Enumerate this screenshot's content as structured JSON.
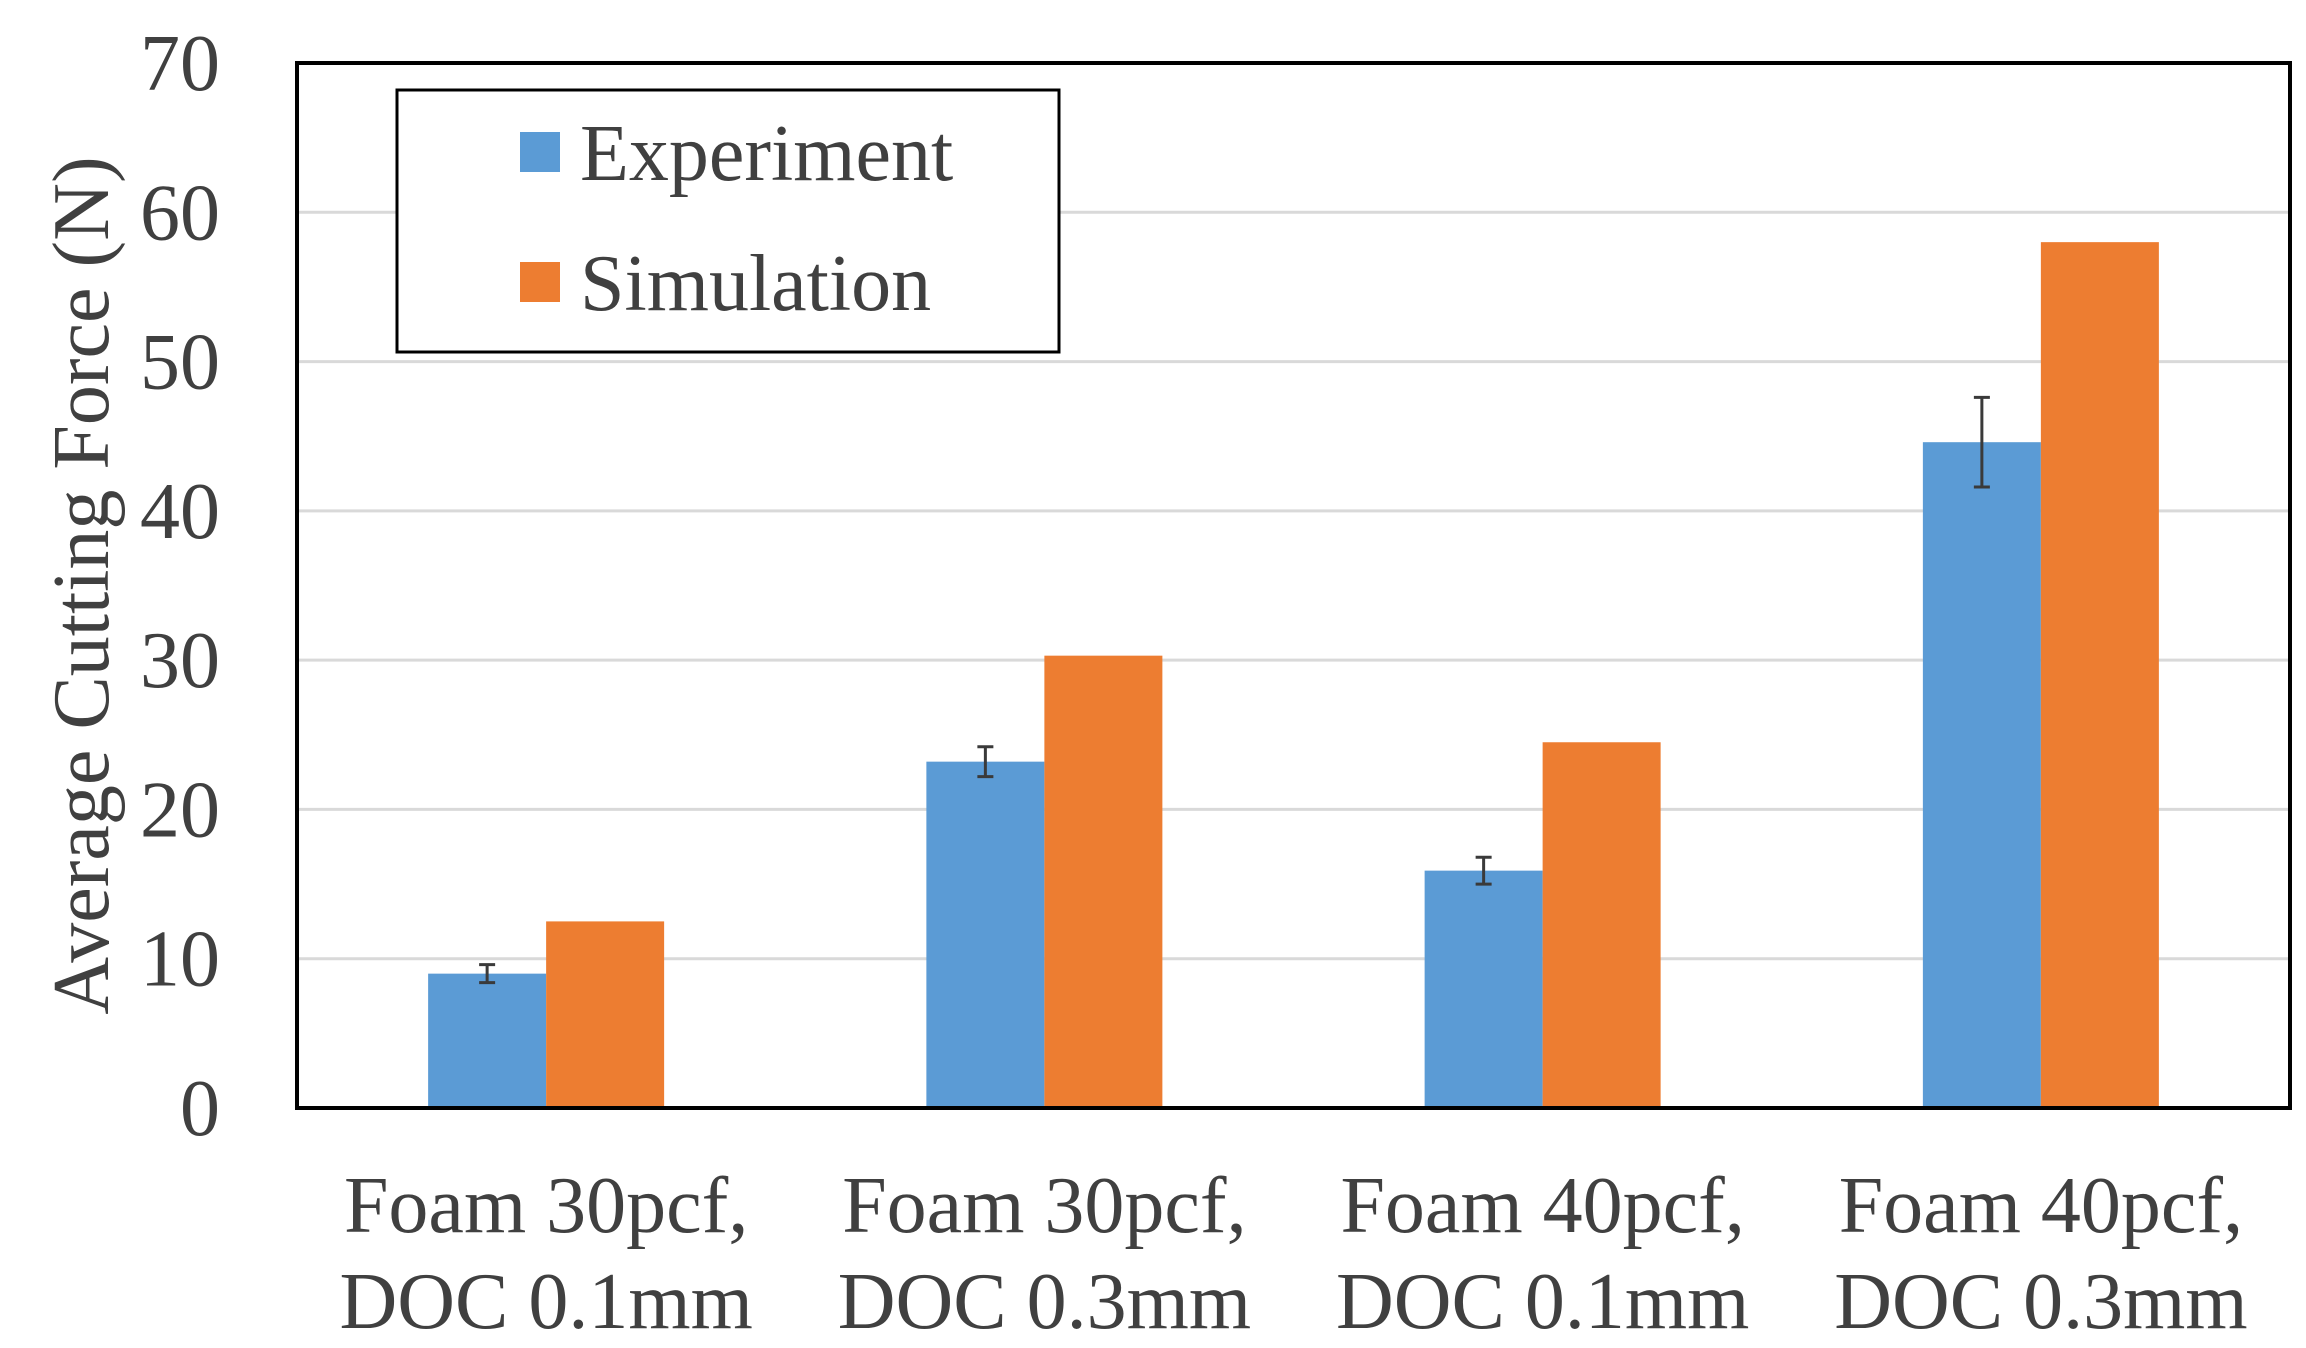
{
  "chart_data": {
    "type": "bar",
    "title": "",
    "xlabel": "",
    "ylabel": "Average Cutting Force (N)",
    "ylim": [
      0,
      70
    ],
    "yticks": [
      0,
      10,
      20,
      30,
      40,
      50,
      60,
      70
    ],
    "grid": true,
    "legend_position": "top-left",
    "categories": [
      [
        "Foam 30pcf,",
        "DOC 0.1mm"
      ],
      [
        "Foam 30pcf,",
        "DOC 0.3mm"
      ],
      [
        "Foam 40pcf,",
        "DOC 0.1mm"
      ],
      [
        "Foam 40pcf,",
        "DOC 0.3mm"
      ]
    ],
    "series": [
      {
        "name": "Experiment",
        "color": "#5b9bd5",
        "values": [
          9.0,
          23.2,
          15.9,
          44.6
        ],
        "error": [
          0.6,
          1.0,
          0.9,
          3.0
        ]
      },
      {
        "name": "Simulation",
        "color": "#ed7d31",
        "values": [
          12.5,
          30.3,
          24.5,
          58.0
        ]
      }
    ]
  }
}
